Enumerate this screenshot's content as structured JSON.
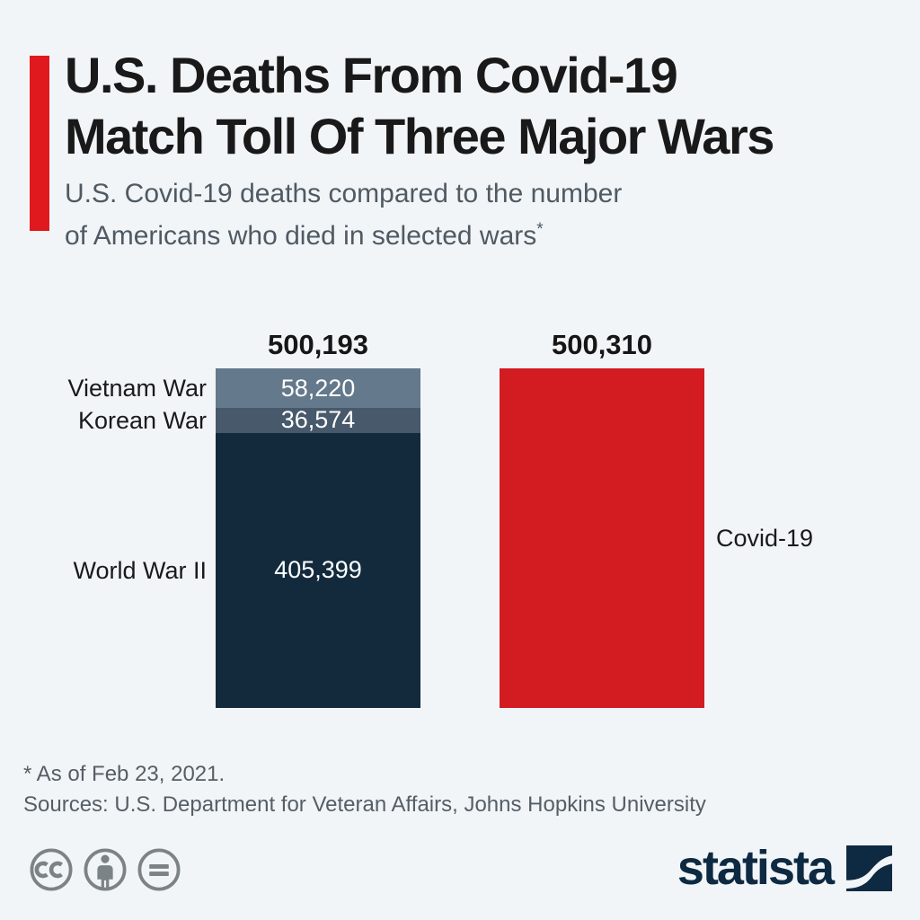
{
  "page": {
    "background": "#F2F5F8"
  },
  "header": {
    "accent_color": "#E0191F",
    "title_line1": "U.S. Deaths From Covid-19",
    "title_line2": "Match Toll Of Three Major Wars",
    "subtitle_line1": "U.S. Covid-19 deaths compared to the number",
    "subtitle_line2": "of Americans who died in selected wars",
    "subtitle_footnote_marker": "*"
  },
  "chart_data": {
    "type": "bar",
    "variant": "stacked-column-comparison",
    "title": "U.S. Deaths From Covid-19 Match Toll Of Three Major Wars",
    "unit": "deaths",
    "ylim": [
      0,
      500310
    ],
    "grid": false,
    "legend": "none",
    "bars": [
      {
        "name": "Three major wars (stacked)",
        "total": 500193,
        "total_label": "500,193",
        "segments": [
          {
            "label": "Vietnam War",
            "value": 58220,
            "value_label": "58,220",
            "color": "#64798B"
          },
          {
            "label": "Korean War",
            "value": 36574,
            "value_label": "36,574",
            "color": "#47596B"
          },
          {
            "label": "World War II",
            "value": 405399,
            "value_label": "405,399",
            "color": "#132A3D"
          }
        ]
      },
      {
        "name": "Covid-19",
        "total": 500310,
        "total_label": "500,310",
        "segments": [
          {
            "label": "Covid-19",
            "value": 500310,
            "value_label": "",
            "color": "#D31B22"
          }
        ]
      }
    ]
  },
  "footer": {
    "footnote": "* As of Feb 23, 2021.",
    "sources": "Sources: U.S. Department for Veteran Affairs, Johns Hopkins University",
    "license_icon_names": [
      "cc-icon",
      "attribution-person-icon",
      "equals-icon"
    ],
    "icon_color": "#7C8387",
    "brand": {
      "wordmark": "statista",
      "color": "#0E2A42"
    }
  }
}
